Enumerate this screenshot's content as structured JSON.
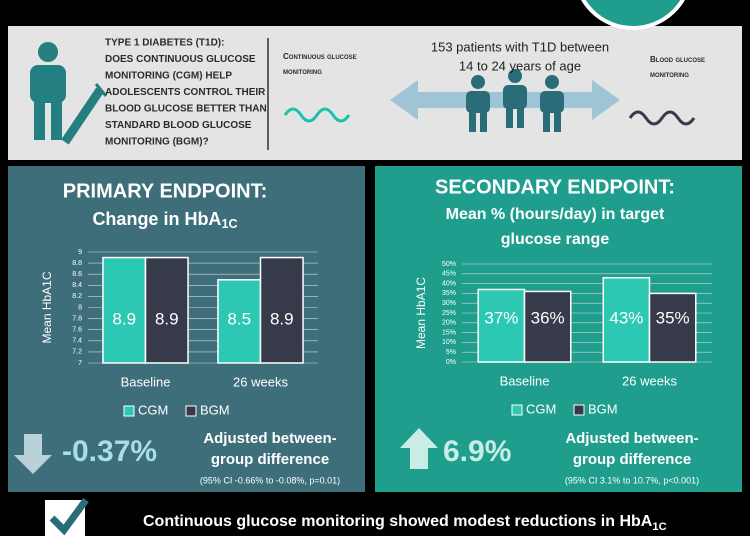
{
  "header": {
    "question": [
      "TYPE 1 DIABETES (T1D):",
      "DOES CONTINUOUS GLUCOSE",
      "MONITORING (CGM) HELP",
      "ADOLESCENTS CONTROL THEIR",
      "BLOOD GLUCOSE BETTER THAN",
      "STANDARD BLOOD GLUCOSE",
      "MONITORING (BGM)?"
    ],
    "cgm_label": [
      "Continuous glucose",
      "monitoring"
    ],
    "patients": [
      "153 patients with T1D between",
      "14 to 24 years of age"
    ],
    "bgm_label": [
      "Blood glucose",
      "monitoring"
    ]
  },
  "chart_data": [
    {
      "type": "bar",
      "title": "PRIMARY ENDPOINT:",
      "subtitle": "Change in HbA",
      "subtitle_subscript": "1C",
      "ylabel": "Mean HbA1C",
      "categories": [
        "Baseline",
        "26 weeks"
      ],
      "series": [
        {
          "name": "CGM",
          "color": "#2cc8b4",
          "values": [
            8.9,
            8.5
          ]
        },
        {
          "name": "BGM",
          "color": "#373a4a",
          "values": [
            8.9,
            8.9
          ]
        }
      ],
      "ylim": [
        7,
        9
      ],
      "yticks": [
        7,
        7.2,
        7.4,
        7.6,
        7.8,
        8,
        8.2,
        8.4,
        8.6,
        8.8,
        9
      ],
      "grid": true
    },
    {
      "type": "bar",
      "title": "SECONDARY ENDPOINT:",
      "subtitle": [
        "Mean % (hours/day) in target",
        "glucose range"
      ],
      "ylabel": "Mean HbA1C",
      "categories": [
        "Baseline",
        "26 weeks"
      ],
      "series": [
        {
          "name": "CGM",
          "color": "#2cc8b4",
          "values": [
            37,
            43
          ],
          "value_labels": [
            "37%",
            "43%"
          ]
        },
        {
          "name": "BGM",
          "color": "#373a4a",
          "values": [
            36,
            35
          ],
          "value_labels": [
            "36%",
            "35%"
          ]
        }
      ],
      "ylim": [
        0,
        50
      ],
      "yticks": [
        {
          "value": 0,
          "label": "0%"
        },
        {
          "value": 5,
          "label": "5%"
        },
        {
          "value": 10,
          "label": "10%"
        },
        {
          "value": 15,
          "label": "15%"
        },
        {
          "value": 20,
          "label": "20%"
        },
        {
          "value": 25,
          "label": "25%"
        },
        {
          "value": 30,
          "label": "30%"
        },
        {
          "value": 35,
          "label": "35%"
        },
        {
          "value": 40,
          "label": "40%"
        },
        {
          "value": 45,
          "label": "45%"
        },
        {
          "value": 50,
          "label": "50%"
        }
      ],
      "grid": true
    }
  ],
  "results": [
    {
      "value": "-0.37%",
      "label": [
        "Adjusted between-",
        "group difference"
      ],
      "ci": "(95% CI -0.66% to -0.08%, p=0.01)"
    },
    {
      "value": "6.9%",
      "label": [
        "Adjusted between-",
        "group difference"
      ],
      "ci": "(95% CI 3.1% to 10.7%, p<0.001)"
    }
  ],
  "footer": {
    "text": "Continuous glucose monitoring showed modest reductions in HbA",
    "subscript": "1C"
  }
}
